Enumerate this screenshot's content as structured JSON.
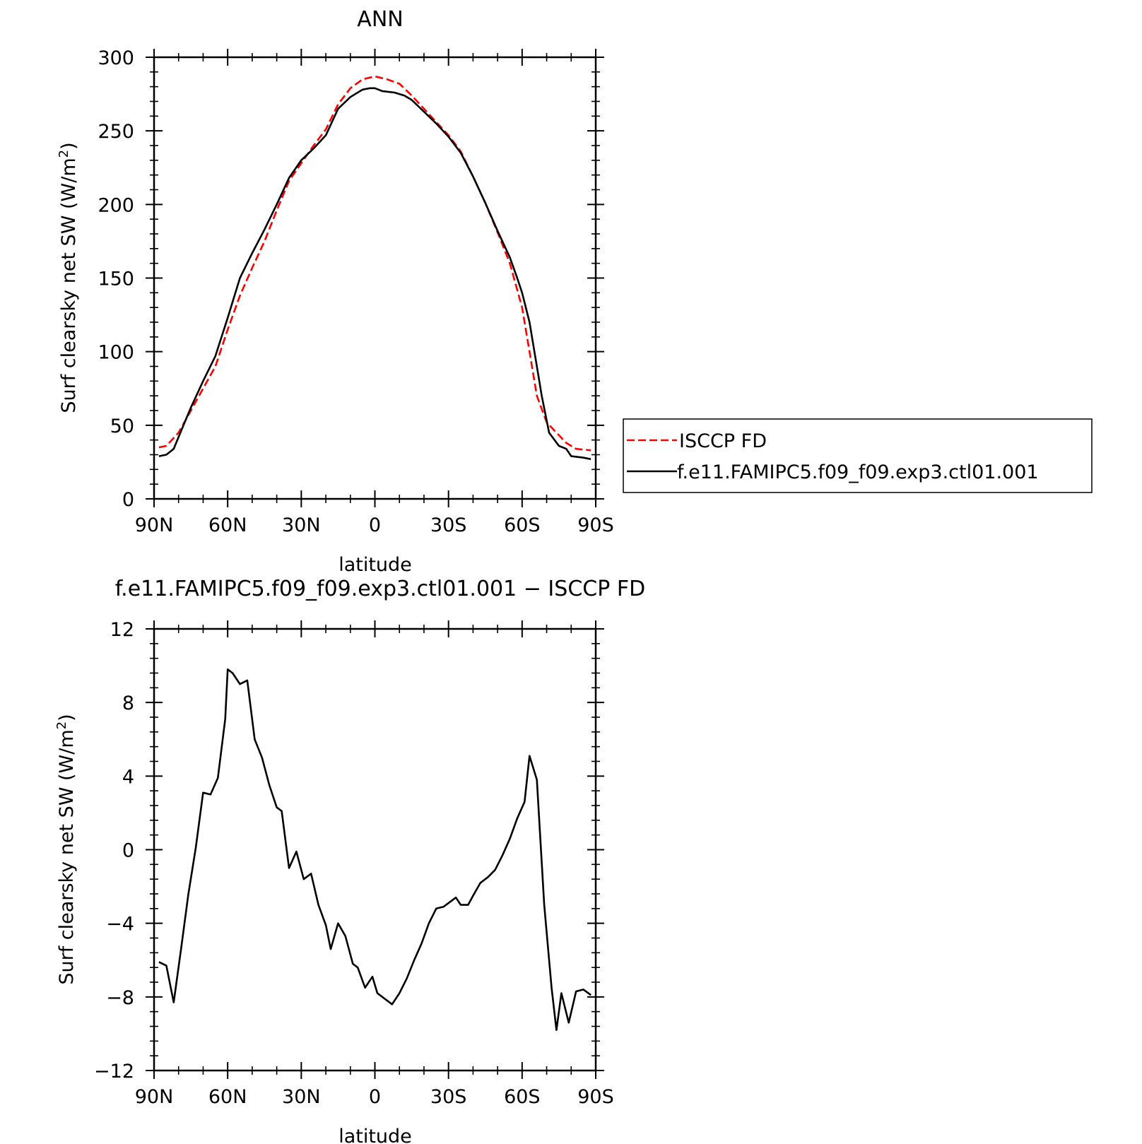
{
  "top_panel": {
    "title": "ANN",
    "ylabel_prefix": "Surf clearsky net SW (W/m",
    "ylabel_sup": "2",
    "ylabel_suffix": ")",
    "xlabel": "latitude",
    "legend": {
      "entries": [
        "ISCCP FD",
        "f.e11.FAMIPC5.f09_f09.exp3.ctl01.001"
      ]
    }
  },
  "bottom_panel": {
    "title": "f.e11.FAMIPC5.f09_f09.exp3.ctl01.001 − ISCCP FD",
    "ylabel_prefix": "Surf clearsky net SW (W/m",
    "ylabel_sup": "2",
    "ylabel_suffix": ")",
    "xlabel": "latitude"
  },
  "chart_data": [
    {
      "type": "line",
      "title": "ANN",
      "xlabel": "latitude",
      "ylabel": "Surf clearsky net SW (W/m2)",
      "xlim": [
        -90,
        90
      ],
      "ylim": [
        0,
        300
      ],
      "x_direction": "north-to-south",
      "xticks": [
        {
          "value": -90,
          "label": "90N"
        },
        {
          "value": -60,
          "label": "60N"
        },
        {
          "value": -30,
          "label": "30N"
        },
        {
          "value": 0,
          "label": "0"
        },
        {
          "value": 30,
          "label": "30S"
        },
        {
          "value": 60,
          "label": "60S"
        },
        {
          "value": 90,
          "label": "90S"
        }
      ],
      "yticks": [
        {
          "value": 0,
          "label": "0"
        },
        {
          "value": 50,
          "label": "50"
        },
        {
          "value": 100,
          "label": "100"
        },
        {
          "value": 150,
          "label": "150"
        },
        {
          "value": 200,
          "label": "200"
        },
        {
          "value": 250,
          "label": "250"
        },
        {
          "value": 300,
          "label": "300"
        }
      ],
      "legend_position": "right",
      "series": [
        {
          "name": "ISCCP FD",
          "color": "#ff0000",
          "dash": "dashed",
          "points": [
            [
              -88,
              35
            ],
            [
              -85,
              36
            ],
            [
              -80,
              45
            ],
            [
              -75,
              60
            ],
            [
              -70,
              75
            ],
            [
              -65,
              90
            ],
            [
              -60,
              115
            ],
            [
              -55,
              138
            ],
            [
              -50,
              157
            ],
            [
              -45,
              175
            ],
            [
              -40,
              196
            ],
            [
              -35,
              216
            ],
            [
              -30,
              228
            ],
            [
              -25,
              240
            ],
            [
              -20,
              251
            ],
            [
              -15,
              268
            ],
            [
              -10,
              279
            ],
            [
              -5,
              285
            ],
            [
              0,
              287
            ],
            [
              5,
              285
            ],
            [
              10,
              282
            ],
            [
              15,
              274
            ],
            [
              20,
              265
            ],
            [
              25,
              256
            ],
            [
              30,
              247
            ],
            [
              35,
              236
            ],
            [
              40,
              219
            ],
            [
              45,
              201
            ],
            [
              50,
              181
            ],
            [
              55,
              160
            ],
            [
              60,
              130
            ],
            [
              63,
              100
            ],
            [
              66,
              70
            ],
            [
              70,
              52
            ],
            [
              74,
              45
            ],
            [
              78,
              38
            ],
            [
              82,
              34
            ],
            [
              88,
              33
            ]
          ]
        },
        {
          "name": "f.e11.FAMIPC5.f09_f09.exp3.ctl01.001",
          "color": "#000000",
          "dash": "solid",
          "points": [
            [
              -88,
              29
            ],
            [
              -85,
              30
            ],
            [
              -82,
              34
            ],
            [
              -80,
              42
            ],
            [
              -75,
              62
            ],
            [
              -70,
              80
            ],
            [
              -65,
              97
            ],
            [
              -60,
              123
            ],
            [
              -55,
              150
            ],
            [
              -50,
              167
            ],
            [
              -45,
              183
            ],
            [
              -40,
              200
            ],
            [
              -35,
              218
            ],
            [
              -30,
              230
            ],
            [
              -25,
              238
            ],
            [
              -20,
              247
            ],
            [
              -15,
              265
            ],
            [
              -10,
              273
            ],
            [
              -5,
              278
            ],
            [
              -2,
              279
            ],
            [
              0,
              279
            ],
            [
              3,
              277
            ],
            [
              8,
              276
            ],
            [
              12,
              274
            ],
            [
              15,
              271
            ],
            [
              20,
              263
            ],
            [
              25,
              255
            ],
            [
              30,
              246
            ],
            [
              35,
              235
            ],
            [
              40,
              219
            ],
            [
              45,
              201
            ],
            [
              50,
              182
            ],
            [
              55,
              164
            ],
            [
              58,
              150
            ],
            [
              60,
              140
            ],
            [
              63,
              120
            ],
            [
              66,
              90
            ],
            [
              68,
              70
            ],
            [
              71,
              45
            ],
            [
              75,
              36
            ],
            [
              78,
              34
            ],
            [
              80,
              29
            ],
            [
              85,
              28
            ],
            [
              88,
              27
            ]
          ]
        }
      ]
    },
    {
      "type": "line",
      "title": "f.e11.FAMIPC5.f09_f09.exp3.ctl01.001 − ISCCP FD",
      "xlabel": "latitude",
      "ylabel": "Surf clearsky net SW (W/m2)",
      "xlim": [
        -90,
        90
      ],
      "ylim": [
        -12,
        12
      ],
      "x_direction": "north-to-south",
      "xticks": [
        {
          "value": -90,
          "label": "90N"
        },
        {
          "value": -60,
          "label": "60N"
        },
        {
          "value": -30,
          "label": "30N"
        },
        {
          "value": 0,
          "label": "0"
        },
        {
          "value": 30,
          "label": "30S"
        },
        {
          "value": 60,
          "label": "60S"
        },
        {
          "value": 90,
          "label": "90S"
        }
      ],
      "yticks": [
        {
          "value": -12,
          "label": "−12"
        },
        {
          "value": -8,
          "label": "−8"
        },
        {
          "value": -4,
          "label": "−4"
        },
        {
          "value": 0,
          "label": "0"
        },
        {
          "value": 4,
          "label": "4"
        },
        {
          "value": 8,
          "label": "8"
        },
        {
          "value": 12,
          "label": "12"
        }
      ],
      "series": [
        {
          "name": "",
          "color": "#000000",
          "dash": "solid",
          "points": [
            [
              -88,
              -6.1
            ],
            [
              -85,
              -6.3
            ],
            [
              -82,
              -8.3
            ],
            [
              -79,
              -5.4
            ],
            [
              -76,
              -2.4
            ],
            [
              -73,
              0.1
            ],
            [
              -70,
              3.1
            ],
            [
              -67,
              3.0
            ],
            [
              -64,
              3.9
            ],
            [
              -61,
              7.1
            ],
            [
              -60,
              9.8
            ],
            [
              -58,
              9.6
            ],
            [
              -55,
              9.0
            ],
            [
              -52,
              9.2
            ],
            [
              -49,
              6.0
            ],
            [
              -46,
              5.0
            ],
            [
              -43,
              3.5
            ],
            [
              -40,
              2.3
            ],
            [
              -38,
              2.1
            ],
            [
              -35,
              -1.0
            ],
            [
              -32,
              -0.1
            ],
            [
              -29,
              -1.6
            ],
            [
              -26,
              -1.3
            ],
            [
              -23,
              -3.0
            ],
            [
              -20,
              -4.1
            ],
            [
              -18,
              -5.4
            ],
            [
              -15,
              -4.0
            ],
            [
              -12,
              -4.7
            ],
            [
              -9,
              -6.2
            ],
            [
              -7,
              -6.4
            ],
            [
              -4,
              -7.5
            ],
            [
              -1,
              -6.9
            ],
            [
              1,
              -7.8
            ],
            [
              4,
              -8.1
            ],
            [
              7,
              -8.4
            ],
            [
              10,
              -7.8
            ],
            [
              13,
              -7.0
            ],
            [
              16,
              -6.0
            ],
            [
              19,
              -5.1
            ],
            [
              22,
              -4.0
            ],
            [
              25,
              -3.2
            ],
            [
              28,
              -3.1
            ],
            [
              31,
              -2.8
            ],
            [
              33,
              -2.6
            ],
            [
              35,
              -3.0
            ],
            [
              38,
              -3.0
            ],
            [
              40,
              -2.5
            ],
            [
              43,
              -1.8
            ],
            [
              46,
              -1.5
            ],
            [
              49,
              -1.1
            ],
            [
              52,
              -0.3
            ],
            [
              55,
              0.6
            ],
            [
              58,
              1.7
            ],
            [
              61,
              2.6
            ],
            [
              63,
              5.1
            ],
            [
              66,
              3.8
            ],
            [
              69,
              -3.0
            ],
            [
              72,
              -7.5
            ],
            [
              74,
              -9.8
            ],
            [
              76,
              -7.8
            ],
            [
              79,
              -9.4
            ],
            [
              82,
              -7.7
            ],
            [
              85,
              -7.6
            ],
            [
              88,
              -7.9
            ]
          ]
        }
      ]
    }
  ]
}
